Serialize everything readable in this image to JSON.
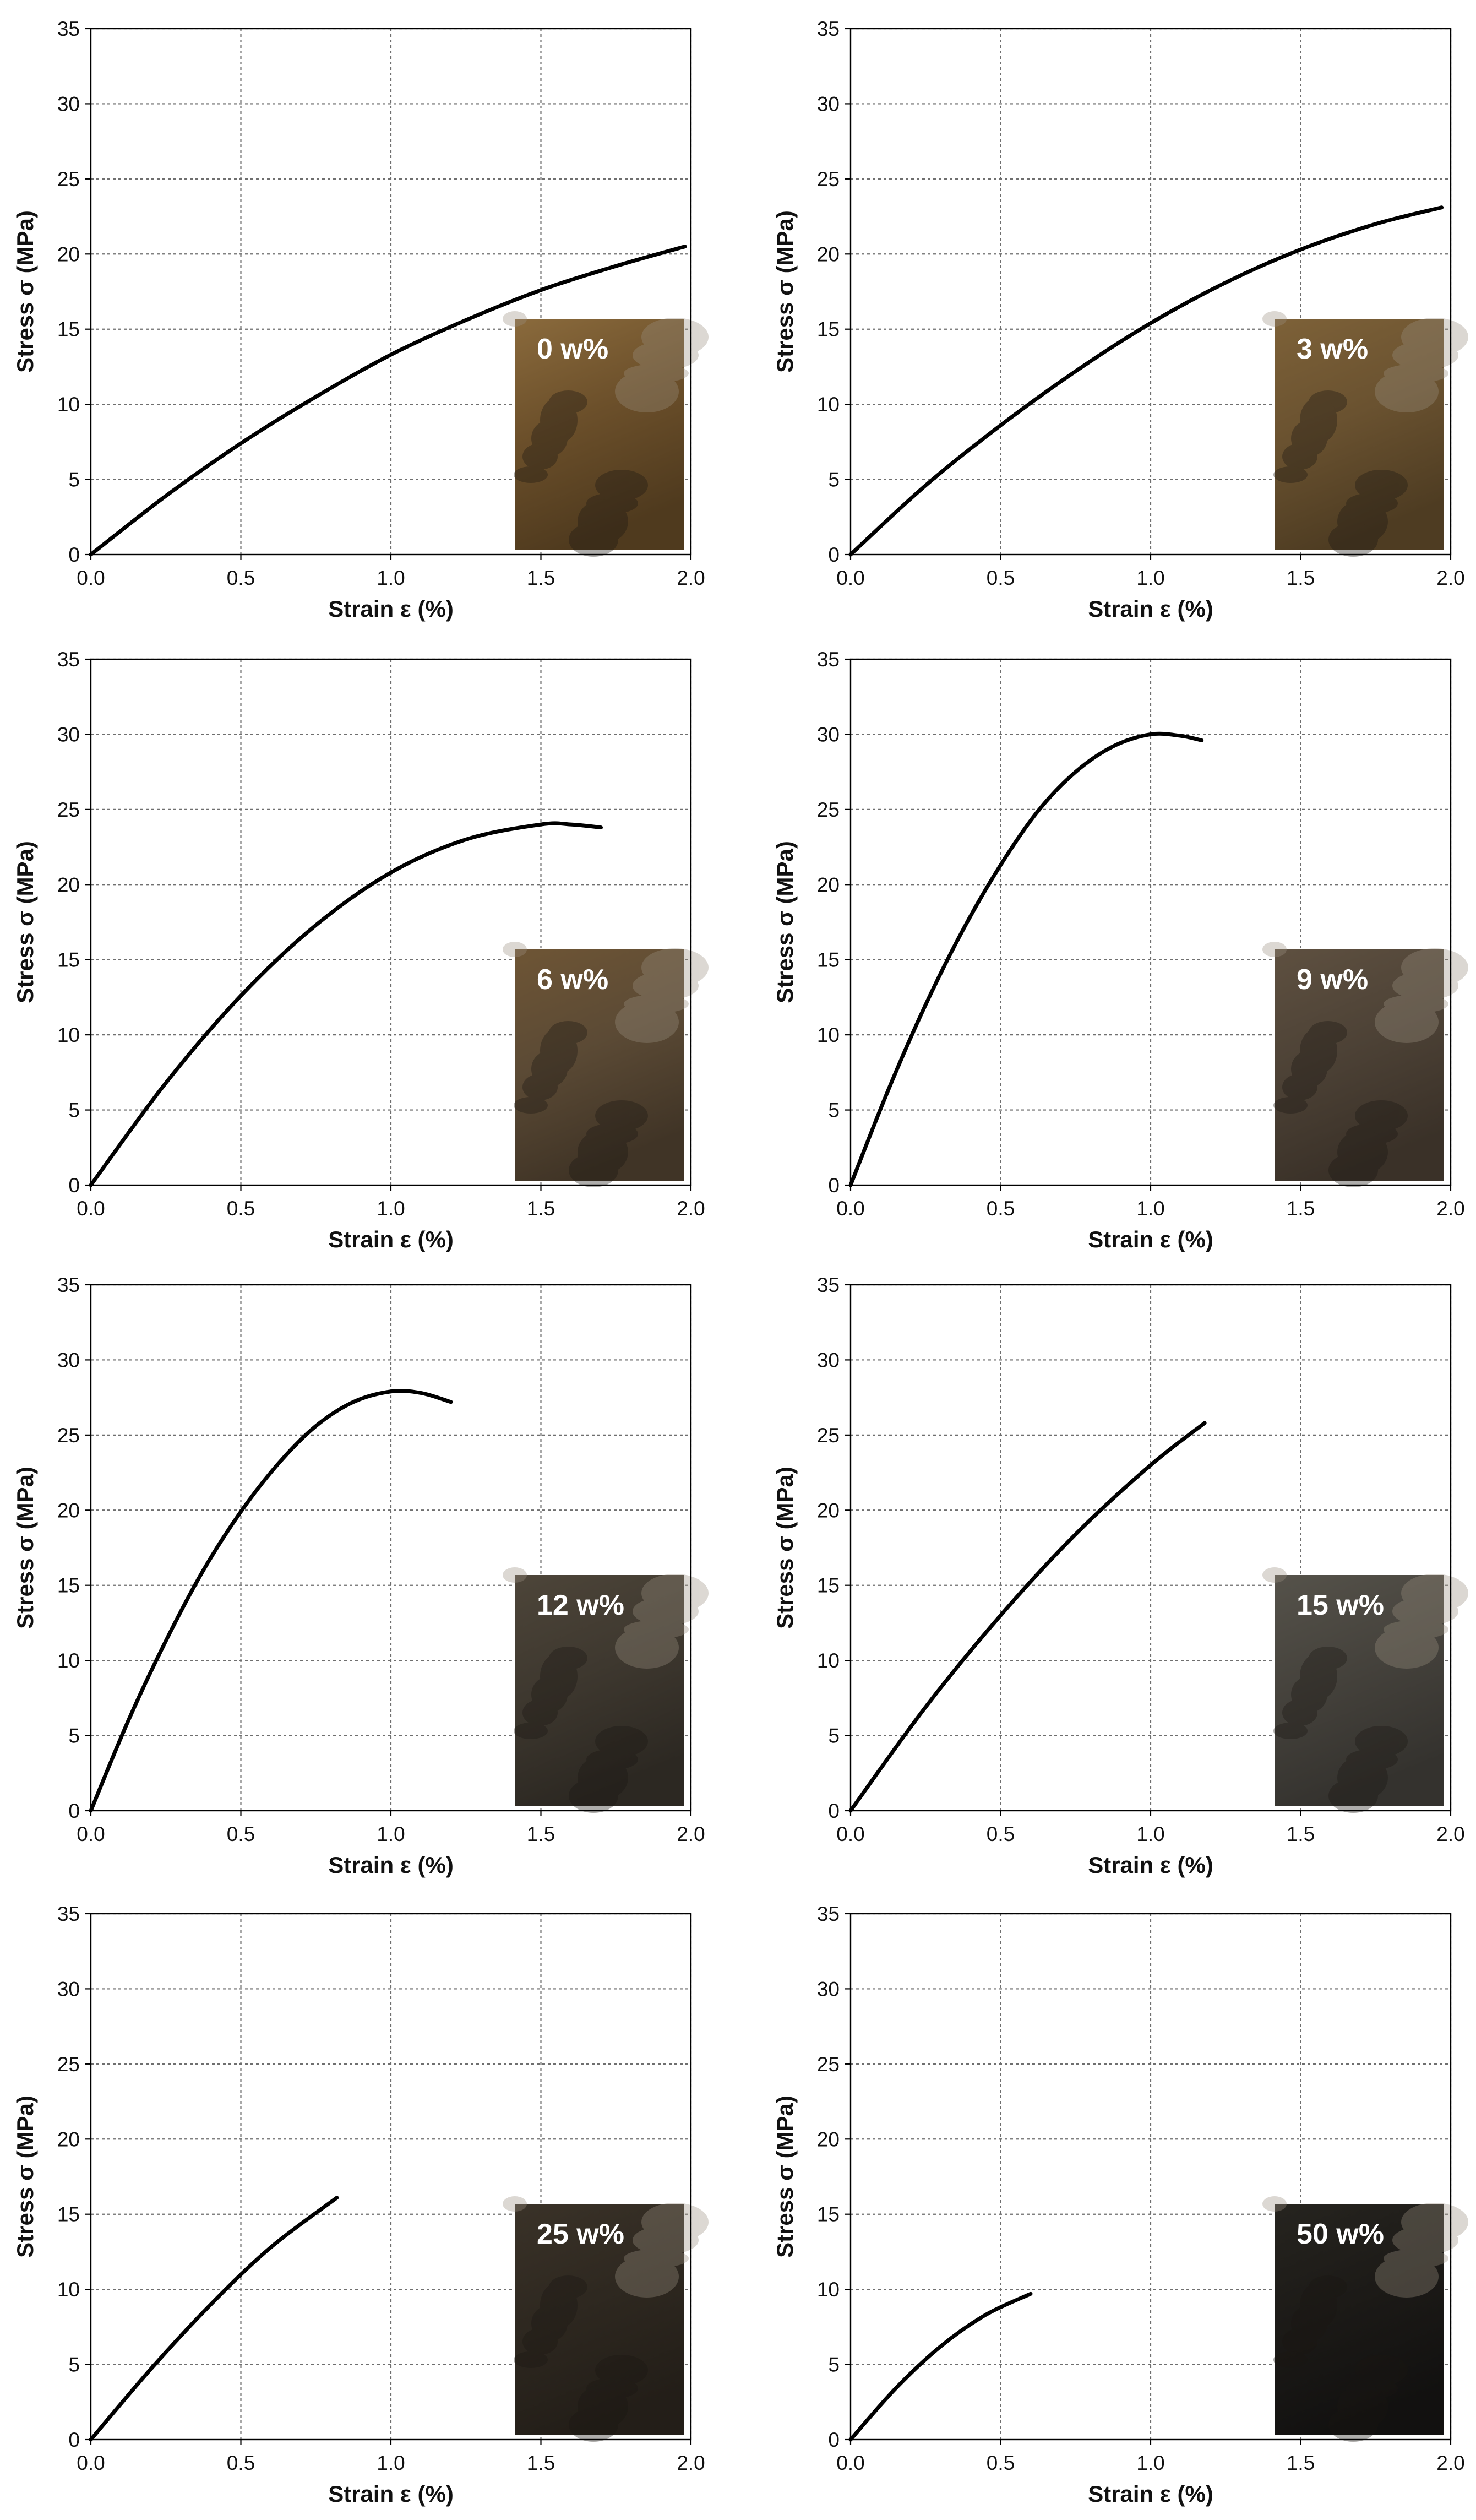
{
  "colors": {
    "curve": "#000000",
    "grid": "#6f6f6f",
    "axis": "#000000",
    "background": "#ffffff",
    "inset_text": "#ffffff"
  },
  "chart_data": [
    {
      "type": "line",
      "xlabel": "Strain ε (%)",
      "ylabel": "Stress σ (MPa)",
      "xlim": [
        0,
        2.0
      ],
      "ylim": [
        0,
        35
      ],
      "xticks": [
        "0.0",
        "0.5",
        "1.0",
        "1.5",
        "2.0"
      ],
      "yticks": [
        "0",
        "5",
        "10",
        "15",
        "20",
        "25",
        "30",
        "35"
      ],
      "grid": true,
      "inset_label": "0 w%",
      "inset_colors": [
        "#8a6a3c",
        "#6b4f2a",
        "#4f3a1e"
      ],
      "series": [
        {
          "x": [
            0,
            0.25,
            0.5,
            0.75,
            1.0,
            1.25,
            1.5,
            1.75,
            1.98
          ],
          "y": [
            0,
            3.9,
            7.4,
            10.5,
            13.3,
            15.6,
            17.6,
            19.2,
            20.5
          ]
        }
      ]
    },
    {
      "type": "line",
      "xlabel": "Strain ε (%)",
      "ylabel": "Stress σ (MPa)",
      "xlim": [
        0,
        2.0
      ],
      "ylim": [
        0,
        35
      ],
      "xticks": [
        "0.0",
        "0.5",
        "1.0",
        "1.5",
        "2.0"
      ],
      "yticks": [
        "0",
        "5",
        "10",
        "15",
        "20",
        "25",
        "30",
        "35"
      ],
      "grid": true,
      "inset_label": "3 w%",
      "inset_colors": [
        "#7d6138",
        "#6a5230",
        "#4e3c22"
      ],
      "series": [
        {
          "x": [
            0,
            0.25,
            0.5,
            0.75,
            1.0,
            1.25,
            1.5,
            1.75,
            1.97
          ],
          "y": [
            0,
            4.6,
            8.6,
            12.2,
            15.4,
            18.1,
            20.3,
            22.0,
            23.1
          ]
        }
      ]
    },
    {
      "type": "line",
      "xlabel": "Strain ε (%)",
      "ylabel": "Stress σ (MPa)",
      "xlim": [
        0,
        2.0
      ],
      "ylim": [
        0,
        35
      ],
      "xticks": [
        "0.0",
        "0.5",
        "1.0",
        "1.5",
        "2.0"
      ],
      "yticks": [
        "0",
        "5",
        "10",
        "15",
        "20",
        "25",
        "30",
        "35"
      ],
      "grid": true,
      "inset_label": "6 w%",
      "inset_colors": [
        "#6e5535",
        "#5b4a35",
        "#403426"
      ],
      "series": [
        {
          "x": [
            0,
            0.25,
            0.5,
            0.75,
            1.0,
            1.25,
            1.5,
            1.6,
            1.7
          ],
          "y": [
            0,
            6.8,
            12.6,
            17.3,
            20.8,
            23.0,
            24.0,
            24.0,
            23.8
          ]
        }
      ]
    },
    {
      "type": "line",
      "xlabel": "Strain ε (%)",
      "ylabel": "Stress σ (MPa)",
      "xlim": [
        0,
        2.0
      ],
      "ylim": [
        0,
        35
      ],
      "xticks": [
        "0.0",
        "0.5",
        "1.0",
        "1.5",
        "2.0"
      ],
      "yticks": [
        "0",
        "5",
        "10",
        "15",
        "20",
        "25",
        "30",
        "35"
      ],
      "grid": true,
      "inset_label": "9 w%",
      "inset_colors": [
        "#5e5040",
        "#4d4236",
        "#3a3128"
      ],
      "series": [
        {
          "x": [
            0,
            0.125,
            0.25,
            0.375,
            0.5,
            0.625,
            0.75,
            0.875,
            1.0,
            1.1,
            1.17
          ],
          "y": [
            0,
            6.3,
            12.0,
            17.0,
            21.3,
            24.9,
            27.5,
            29.2,
            30.0,
            29.9,
            29.6
          ]
        }
      ]
    },
    {
      "type": "line",
      "xlabel": "Strain ε (%)",
      "ylabel": "Stress σ (MPa)",
      "xlim": [
        0,
        2.0
      ],
      "ylim": [
        0,
        35
      ],
      "xticks": [
        "0.0",
        "0.5",
        "1.0",
        "1.5",
        "2.0"
      ],
      "yticks": [
        "0",
        "5",
        "10",
        "15",
        "20",
        "25",
        "30",
        "35"
      ],
      "grid": true,
      "inset_label": "12 w%",
      "inset_colors": [
        "#4d4539",
        "#3e382f",
        "#2c2822"
      ],
      "series": [
        {
          "x": [
            0,
            0.125,
            0.25,
            0.375,
            0.5,
            0.625,
            0.75,
            0.875,
            1.0,
            1.1,
            1.2
          ],
          "y": [
            0,
            6.0,
            11.3,
            16.0,
            19.9,
            23.1,
            25.6,
            27.2,
            27.9,
            27.8,
            27.2
          ]
        }
      ]
    },
    {
      "type": "line",
      "xlabel": "Strain ε (%)",
      "ylabel": "Stress σ (MPa)",
      "xlim": [
        0,
        2.0
      ],
      "ylim": [
        0,
        35
      ],
      "xticks": [
        "0.0",
        "0.5",
        "1.0",
        "1.5",
        "2.0"
      ],
      "yticks": [
        "0",
        "5",
        "10",
        "15",
        "20",
        "25",
        "30",
        "35"
      ],
      "grid": true,
      "inset_label": "15 w%",
      "inset_colors": [
        "#55524a",
        "#45423c",
        "#34322e"
      ],
      "series": [
        {
          "x": [
            0,
            0.25,
            0.5,
            0.75,
            1.0,
            1.18
          ],
          "y": [
            0,
            6.9,
            13.0,
            18.4,
            23.0,
            25.8
          ]
        }
      ]
    },
    {
      "type": "line",
      "xlabel": "Strain ε (%)",
      "ylabel": "Stress σ (MPa)",
      "xlim": [
        0,
        2.0
      ],
      "ylim": [
        0,
        35
      ],
      "xticks": [
        "0.0",
        "0.5",
        "1.0",
        "1.5",
        "2.0"
      ],
      "yticks": [
        "0",
        "5",
        "10",
        "15",
        "20",
        "25",
        "30",
        "35"
      ],
      "grid": true,
      "inset_label": "25 w%",
      "inset_colors": [
        "#3a3228",
        "#2e2820",
        "#231e18"
      ],
      "series": [
        {
          "x": [
            0,
            0.2,
            0.4,
            0.6,
            0.82
          ],
          "y": [
            0,
            4.7,
            9.0,
            12.8,
            16.1
          ]
        }
      ]
    },
    {
      "type": "line",
      "xlabel": "Strain ε (%)",
      "ylabel": "Stress σ (MPa)",
      "xlim": [
        0,
        2.0
      ],
      "ylim": [
        0,
        35
      ],
      "xticks": [
        "0.0",
        "0.5",
        "1.0",
        "1.5",
        "2.0"
      ],
      "yticks": [
        "0",
        "5",
        "10",
        "15",
        "20",
        "25",
        "30",
        "35"
      ],
      "grid": true,
      "inset_label": "50 w%",
      "inset_colors": [
        "#26241f",
        "#1c1a17",
        "#121110"
      ],
      "series": [
        {
          "x": [
            0,
            0.15,
            0.3,
            0.45,
            0.6
          ],
          "y": [
            0,
            3.4,
            6.2,
            8.3,
            9.7
          ]
        }
      ]
    }
  ]
}
